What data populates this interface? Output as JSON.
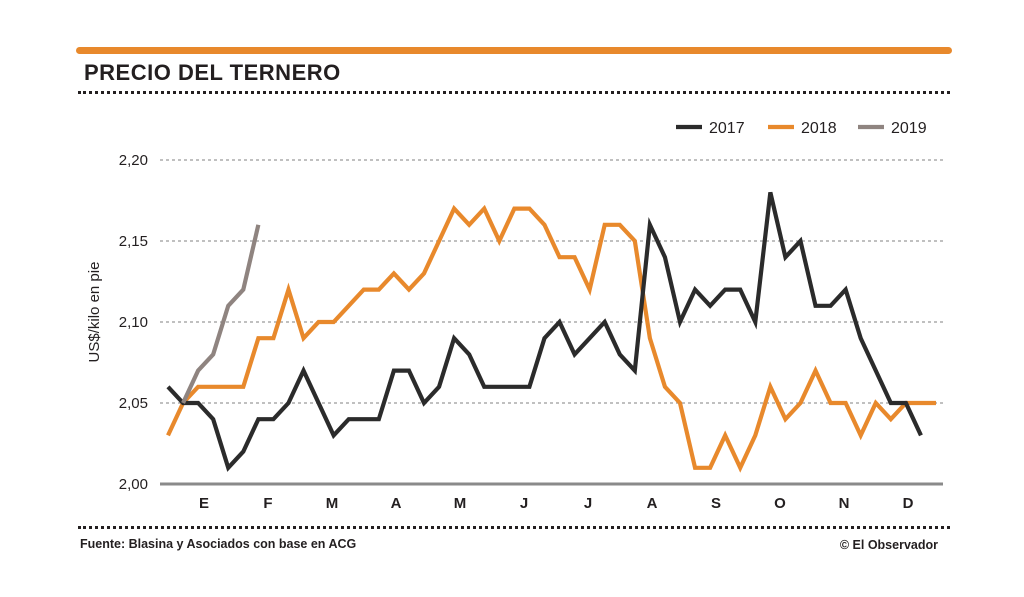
{
  "header": {
    "title": "PRECIO DEL TERNERO"
  },
  "footer": {
    "source": "Fuente: Blasina y Asociados con base en ACG",
    "credit": "© El Observador"
  },
  "colors": {
    "accent": "#e8892c",
    "dark": "#2b2b2b",
    "grey": "#8f8480",
    "grid": "#9a9a9a"
  },
  "chart_data": {
    "type": "line",
    "title": "PRECIO DEL TERNERO",
    "xlabel": "",
    "ylabel": "US$/kilo en pie",
    "ylim": [
      2.0,
      2.2
    ],
    "yticks": [
      2.0,
      2.05,
      2.1,
      2.15,
      2.2
    ],
    "ytick_labels": [
      "2,00",
      "2,05",
      "2,10",
      "2,15",
      "2,20"
    ],
    "categories": [
      "E",
      "F",
      "M",
      "A",
      "M",
      "J",
      "J",
      "A",
      "S",
      "O",
      "N",
      "D"
    ],
    "x_unit": "week",
    "x_range": [
      0,
      51
    ],
    "grid": true,
    "legend": "top-right",
    "series": [
      {
        "name": "2017",
        "color": "#2b2b2b",
        "x": [
          0,
          1,
          2,
          3,
          4,
          5,
          6,
          7,
          8,
          9,
          10,
          11,
          12,
          13,
          14,
          15,
          16,
          17,
          18,
          19,
          20,
          21,
          22,
          23,
          24,
          25,
          26,
          27,
          28,
          29,
          30,
          31,
          32,
          33,
          34,
          35,
          36,
          37,
          38,
          39,
          40,
          41,
          42,
          43,
          44,
          45,
          46,
          47,
          48,
          49,
          50
        ],
        "values": [
          2.06,
          2.05,
          2.05,
          2.04,
          2.01,
          2.02,
          2.04,
          2.04,
          2.05,
          2.07,
          2.05,
          2.03,
          2.04,
          2.04,
          2.04,
          2.07,
          2.07,
          2.05,
          2.06,
          2.09,
          2.08,
          2.06,
          2.06,
          2.06,
          2.06,
          2.09,
          2.1,
          2.08,
          2.09,
          2.1,
          2.08,
          2.07,
          2.16,
          2.14,
          2.1,
          2.12,
          2.11,
          2.12,
          2.12,
          2.1,
          2.18,
          2.14,
          2.15,
          2.11,
          2.11,
          2.12,
          2.09,
          2.07,
          2.05,
          2.05,
          2.03
        ]
      },
      {
        "name": "2018",
        "color": "#e8892c",
        "x": [
          0,
          1,
          2,
          3,
          4,
          5,
          6,
          7,
          8,
          9,
          10,
          11,
          12,
          13,
          14,
          15,
          16,
          17,
          18,
          19,
          20,
          21,
          22,
          23,
          24,
          25,
          26,
          27,
          28,
          29,
          30,
          31,
          32,
          33,
          34,
          35,
          36,
          37,
          38,
          39,
          40,
          41,
          42,
          43,
          44,
          45,
          46,
          47,
          48,
          49,
          50,
          51
        ],
        "values": [
          2.03,
          2.05,
          2.06,
          2.06,
          2.06,
          2.06,
          2.09,
          2.09,
          2.12,
          2.09,
          2.1,
          2.1,
          2.11,
          2.12,
          2.12,
          2.13,
          2.12,
          2.13,
          2.15,
          2.17,
          2.16,
          2.17,
          2.15,
          2.17,
          2.17,
          2.16,
          2.14,
          2.14,
          2.12,
          2.16,
          2.16,
          2.15,
          2.09,
          2.06,
          2.05,
          2.01,
          2.01,
          2.03,
          2.01,
          2.03,
          2.06,
          2.04,
          2.05,
          2.07,
          2.05,
          2.05,
          2.03,
          2.05,
          2.04,
          2.05,
          2.05,
          2.05
        ]
      },
      {
        "name": "2019",
        "color": "#8f8480",
        "x": [
          1,
          2,
          3,
          4,
          5,
          6
        ],
        "values": [
          2.05,
          2.07,
          2.08,
          2.11,
          2.12,
          2.16
        ]
      }
    ]
  }
}
